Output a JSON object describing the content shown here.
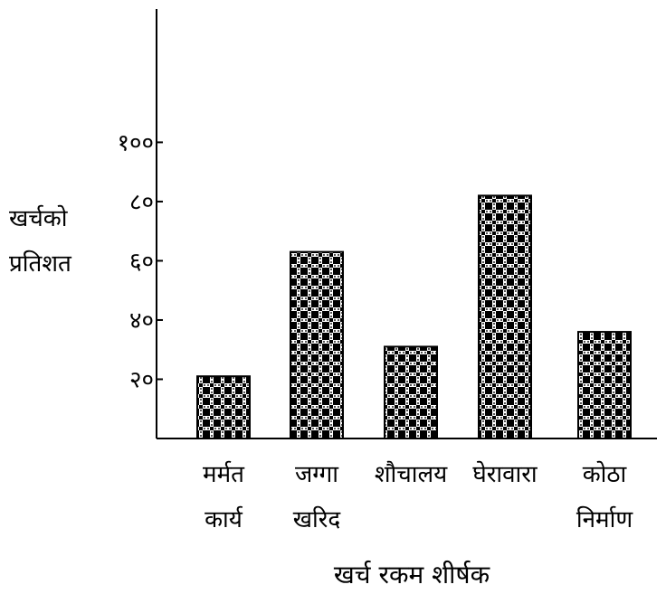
{
  "chart_data": {
    "type": "bar",
    "categories": [
      [
        "मर्मत",
        "कार्य"
      ],
      [
        "जग्गा",
        "खरिद"
      ],
      [
        "शौचालय"
      ],
      [
        "घेरावारा"
      ],
      [
        "कोठा",
        "निर्माण"
      ]
    ],
    "values": [
      21,
      63,
      31,
      82,
      36
    ],
    "ylabel": [
      "खर्चको",
      "प्रतिशत"
    ],
    "xlabel": "खर्च रकम शीर्षक",
    "yticks": [
      {
        "value": 20,
        "label": "२०"
      },
      {
        "value": 40,
        "label": "४०"
      },
      {
        "value": 60,
        "label": "६०"
      },
      {
        "value": 80,
        "label": "८०"
      },
      {
        "value": 100,
        "label": "१००"
      }
    ],
    "ylim": [
      0,
      145
    ],
    "grid": false,
    "bar_fill": "checkered black and white pattern",
    "colors": {
      "ink": "#000000",
      "background": "#ffffff"
    }
  }
}
